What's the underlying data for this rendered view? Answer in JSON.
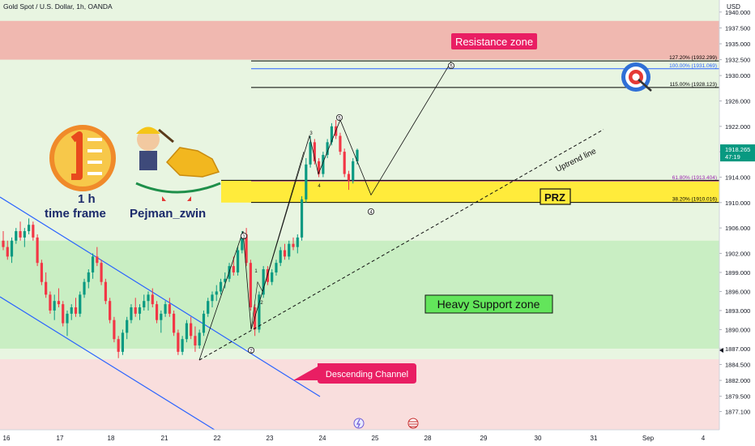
{
  "chart_data": {
    "type": "candlestick",
    "title": "Gold Spot / U.S. Dollar, 1h, OANDA",
    "currency": "USD",
    "price_axis": {
      "range": [
        1875.5,
        1941.0
      ],
      "ticks": [
        "1940.000",
        "1937.500",
        "1935.000",
        "1932.500",
        "1930.000",
        "1926.000",
        "1922.000",
        "1918.000",
        "1914.000",
        "1910.000",
        "1906.000",
        "1902.000",
        "1899.000",
        "1896.000",
        "1893.000",
        "1890.000",
        "1887.000",
        "1884.500",
        "1882.000",
        "1879.500",
        "1877.100"
      ],
      "current_price": "1918.265",
      "countdown": "47:19"
    },
    "time_axis": {
      "labels": [
        "16",
        "17",
        "18",
        "21",
        "22",
        "23",
        "24",
        "25",
        "28",
        "29",
        "30",
        "31",
        "Sep",
        "4"
      ]
    },
    "zones": [
      {
        "label": "Resistance zone",
        "low": 1932.5,
        "high": 1938.6,
        "color": "#f0b8b0"
      },
      {
        "label": "Heavy Support zone",
        "low": 1887.0,
        "high": 1904.0,
        "color": "#c9eec3"
      },
      {
        "label": "PRZ",
        "low": 1910.0,
        "high": 1913.5,
        "color": "#ffeb3b"
      }
    ],
    "fib_levels": [
      {
        "label": "127.20% (1932.299)",
        "value": 1932.299,
        "color": "#000000"
      },
      {
        "label": "100.00% (1931.069)",
        "value": 1931.069,
        "color": "#2962ff"
      },
      {
        "label": "115.00% (1928.123)",
        "value": 1928.123,
        "color": "#000000"
      },
      {
        "label": "61.80% (1913.404)",
        "value": 1913.404,
        "color": "#9c27b0"
      },
      {
        "label": "38.20% (1910.016)",
        "value": 1910.016,
        "color": "#000000"
      }
    ],
    "annotations": {
      "uptrend_line": "Uptrend line",
      "descending_channel": "Descending Channel",
      "wave_labels": [
        "1",
        "2",
        "3",
        "4",
        "5"
      ],
      "sub_wave_labels": [
        "1",
        "2",
        "3",
        "4"
      ]
    },
    "candles": [
      [
        1904,
        1905.5,
        1902.5,
        1903
      ],
      [
        1903,
        1904,
        1901,
        1901.5
      ],
      [
        1901.5,
        1904.5,
        1900.5,
        1904
      ],
      [
        1904,
        1906,
        1903.5,
        1905.5
      ],
      [
        1905.5,
        1907,
        1904,
        1904.5
      ],
      [
        1904.5,
        1906,
        1903,
        1905.5
      ],
      [
        1905.5,
        1907.5,
        1905,
        1906.5
      ],
      [
        1906.5,
        1907,
        1904,
        1904.5
      ],
      [
        1904.5,
        1905,
        1900,
        1900.5
      ],
      [
        1900.5,
        1901,
        1897,
        1897.5
      ],
      [
        1897.5,
        1899,
        1895,
        1895.5
      ],
      [
        1895.5,
        1896,
        1892.5,
        1893
      ],
      [
        1893,
        1895.5,
        1891.5,
        1894.5
      ],
      [
        1894.5,
        1896.5,
        1893.5,
        1894
      ],
      [
        1894,
        1894.5,
        1890.5,
        1891
      ],
      [
        1891,
        1893,
        1889,
        1892.5
      ],
      [
        1892.5,
        1894,
        1891.5,
        1893.5
      ],
      [
        1893.5,
        1895,
        1892,
        1892.5
      ],
      [
        1892.5,
        1896,
        1892,
        1895.5
      ],
      [
        1895.5,
        1898,
        1895,
        1897.5
      ],
      [
        1897.5,
        1899.5,
        1896.5,
        1899
      ],
      [
        1899,
        1902,
        1898,
        1901.5
      ],
      [
        1901.5,
        1903,
        1900,
        1900.5
      ],
      [
        1900.5,
        1901,
        1897,
        1897.5
      ],
      [
        1897.5,
        1898,
        1894,
        1894.5
      ],
      [
        1894.5,
        1895,
        1891,
        1891.5
      ],
      [
        1891.5,
        1892,
        1888,
        1888.5
      ],
      [
        1888.5,
        1889,
        1885.5,
        1886.5
      ],
      [
        1886.5,
        1890,
        1886,
        1889.5
      ],
      [
        1889.5,
        1892,
        1888.5,
        1891.5
      ],
      [
        1891.5,
        1894,
        1891,
        1893.5
      ],
      [
        1893.5,
        1895,
        1892,
        1892.5
      ],
      [
        1892.5,
        1894,
        1891.5,
        1893.5
      ],
      [
        1893.5,
        1895.5,
        1893,
        1894.5
      ],
      [
        1894.5,
        1896,
        1893,
        1895.5
      ],
      [
        1895.5,
        1896.5,
        1893.5,
        1894
      ],
      [
        1894,
        1894.5,
        1891,
        1891.5
      ],
      [
        1891.5,
        1893,
        1889.5,
        1892.5
      ],
      [
        1892.5,
        1894.5,
        1892,
        1894
      ],
      [
        1894,
        1895,
        1892,
        1892.5
      ],
      [
        1892.5,
        1893,
        1889,
        1889.5
      ],
      [
        1889.5,
        1890,
        1886,
        1886.5
      ],
      [
        1886.5,
        1889,
        1886,
        1888.5
      ],
      [
        1888.5,
        1891.5,
        1888,
        1891
      ],
      [
        1891,
        1892,
        1888.5,
        1889
      ],
      [
        1889,
        1890.5,
        1886.5,
        1887.5
      ],
      [
        1887.5,
        1890,
        1887,
        1889.5
      ],
      [
        1889.5,
        1893,
        1889,
        1892.5
      ],
      [
        1892.5,
        1895,
        1892,
        1894.5
      ],
      [
        1894.5,
        1896,
        1893.5,
        1895.5
      ],
      [
        1895.5,
        1897,
        1894.5,
        1896
      ],
      [
        1896,
        1898,
        1895.5,
        1897.5
      ],
      [
        1897.5,
        1899,
        1896.5,
        1898
      ],
      [
        1898,
        1900.5,
        1897.5,
        1900
      ],
      [
        1900,
        1901.5,
        1898.5,
        1899
      ],
      [
        1899,
        1903,
        1898.5,
        1902.5
      ],
      [
        1902.5,
        1905.5,
        1902,
        1905
      ],
      [
        1905,
        1906,
        1900,
        1900.5
      ],
      [
        1900.5,
        1901,
        1893,
        1893.5
      ],
      [
        1893.5,
        1894,
        1889,
        1890
      ],
      [
        1890,
        1896,
        1889.5,
        1895.5
      ],
      [
        1895.5,
        1900,
        1895,
        1899.5
      ],
      [
        1899.5,
        1900,
        1897,
        1897.5
      ],
      [
        1897.5,
        1899.5,
        1897,
        1899
      ],
      [
        1899,
        1901,
        1898.5,
        1900.5
      ],
      [
        1900.5,
        1903,
        1900,
        1902.5
      ],
      [
        1902.5,
        1903.5,
        1901,
        1901.5
      ],
      [
        1901.5,
        1904,
        1901,
        1903.5
      ],
      [
        1903.5,
        1904.5,
        1902.5,
        1903
      ],
      [
        1903,
        1905,
        1902,
        1904.5
      ],
      [
        1904.5,
        1911,
        1904,
        1910.5
      ],
      [
        1910.5,
        1917,
        1910,
        1916
      ],
      [
        1916,
        1920.5,
        1915.5,
        1919.5
      ],
      [
        1919.5,
        1920,
        1916,
        1916.5
      ],
      [
        1916.5,
        1917,
        1914,
        1914.5
      ],
      [
        1914.5,
        1918,
        1914,
        1917.5
      ],
      [
        1917.5,
        1920,
        1917,
        1919.5
      ],
      [
        1919.5,
        1922.5,
        1919,
        1922
      ],
      [
        1922,
        1923,
        1920,
        1920.5
      ],
      [
        1920.5,
        1921,
        1917.5,
        1918
      ],
      [
        1918,
        1918.5,
        1914,
        1914.5
      ],
      [
        1914.5,
        1915,
        1912,
        1913.5
      ],
      [
        1913.5,
        1917,
        1913,
        1916.5
      ],
      [
        1916.5,
        1918.5,
        1916,
        1918.3
      ]
    ]
  }
}
